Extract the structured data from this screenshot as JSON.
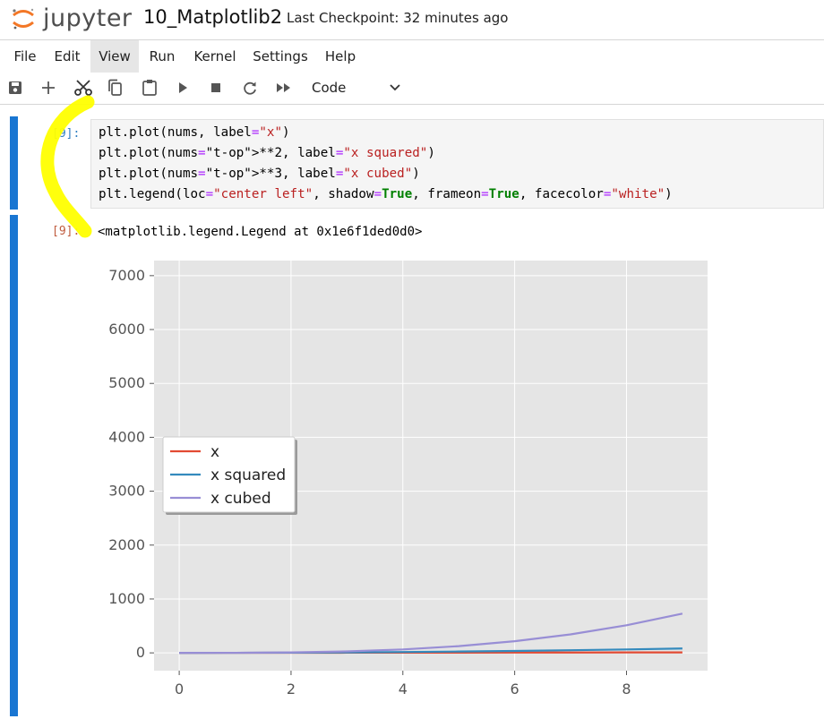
{
  "header": {
    "logo_text": "jupyter",
    "notebook_title": "10_Matplotlib2",
    "checkpoint": "Last Checkpoint: 32 minutes ago"
  },
  "menu": [
    "File",
    "Edit",
    "View",
    "Run",
    "Kernel",
    "Settings",
    "Help"
  ],
  "toolbar": {
    "buttons": [
      "save-icon",
      "add-cell-icon",
      "cut-icon",
      "copy-icon",
      "paste-icon",
      "run-icon",
      "stop-icon",
      "restart-icon",
      "run-all-icon"
    ],
    "cell_type": "Code"
  },
  "cell": {
    "in_prompt": "[9]:",
    "code_lines": [
      "plt.plot(nums, label=\"x\")",
      "plt.plot(nums**2, label=\"x squared\")",
      "plt.plot(nums**3, label=\"x cubed\")",
      "plt.legend(loc=\"center left\", shadow=True, frameon=True, facecolor=\"white\")"
    ],
    "out_prompt": "[9]:",
    "output_text": "<matplotlib.legend.Legend at 0x1e6f1ded0d0>"
  },
  "colors": {
    "accent": "#1976d2",
    "highlight": "#ffff00",
    "plot_bg": "#e5e5e5"
  },
  "chart_data": {
    "type": "line",
    "x": [
      0,
      1,
      2,
      3,
      4,
      5,
      6,
      7,
      8,
      9
    ],
    "series": [
      {
        "name": "x",
        "color": "#e24a33",
        "values": [
          0,
          1,
          2,
          3,
          4,
          5,
          6,
          7,
          8,
          9
        ]
      },
      {
        "name": "x squared",
        "color": "#348abd",
        "values": [
          0,
          1,
          4,
          9,
          16,
          25,
          36,
          49,
          64,
          81
        ]
      },
      {
        "name": "x cubed",
        "color": "#988ed5",
        "values": [
          0,
          1,
          8,
          27,
          64,
          125,
          216,
          343,
          512,
          729
        ]
      }
    ],
    "xticks": [
      0,
      2,
      4,
      6,
      8
    ],
    "yticks": [
      0,
      1000,
      2000,
      3000,
      4000,
      5000,
      6000,
      7000
    ],
    "xlim": [
      -0.45,
      9.45
    ],
    "ylim": [
      -330,
      7280
    ],
    "grid": true,
    "legend_position": "center left",
    "style": "ggplot"
  }
}
